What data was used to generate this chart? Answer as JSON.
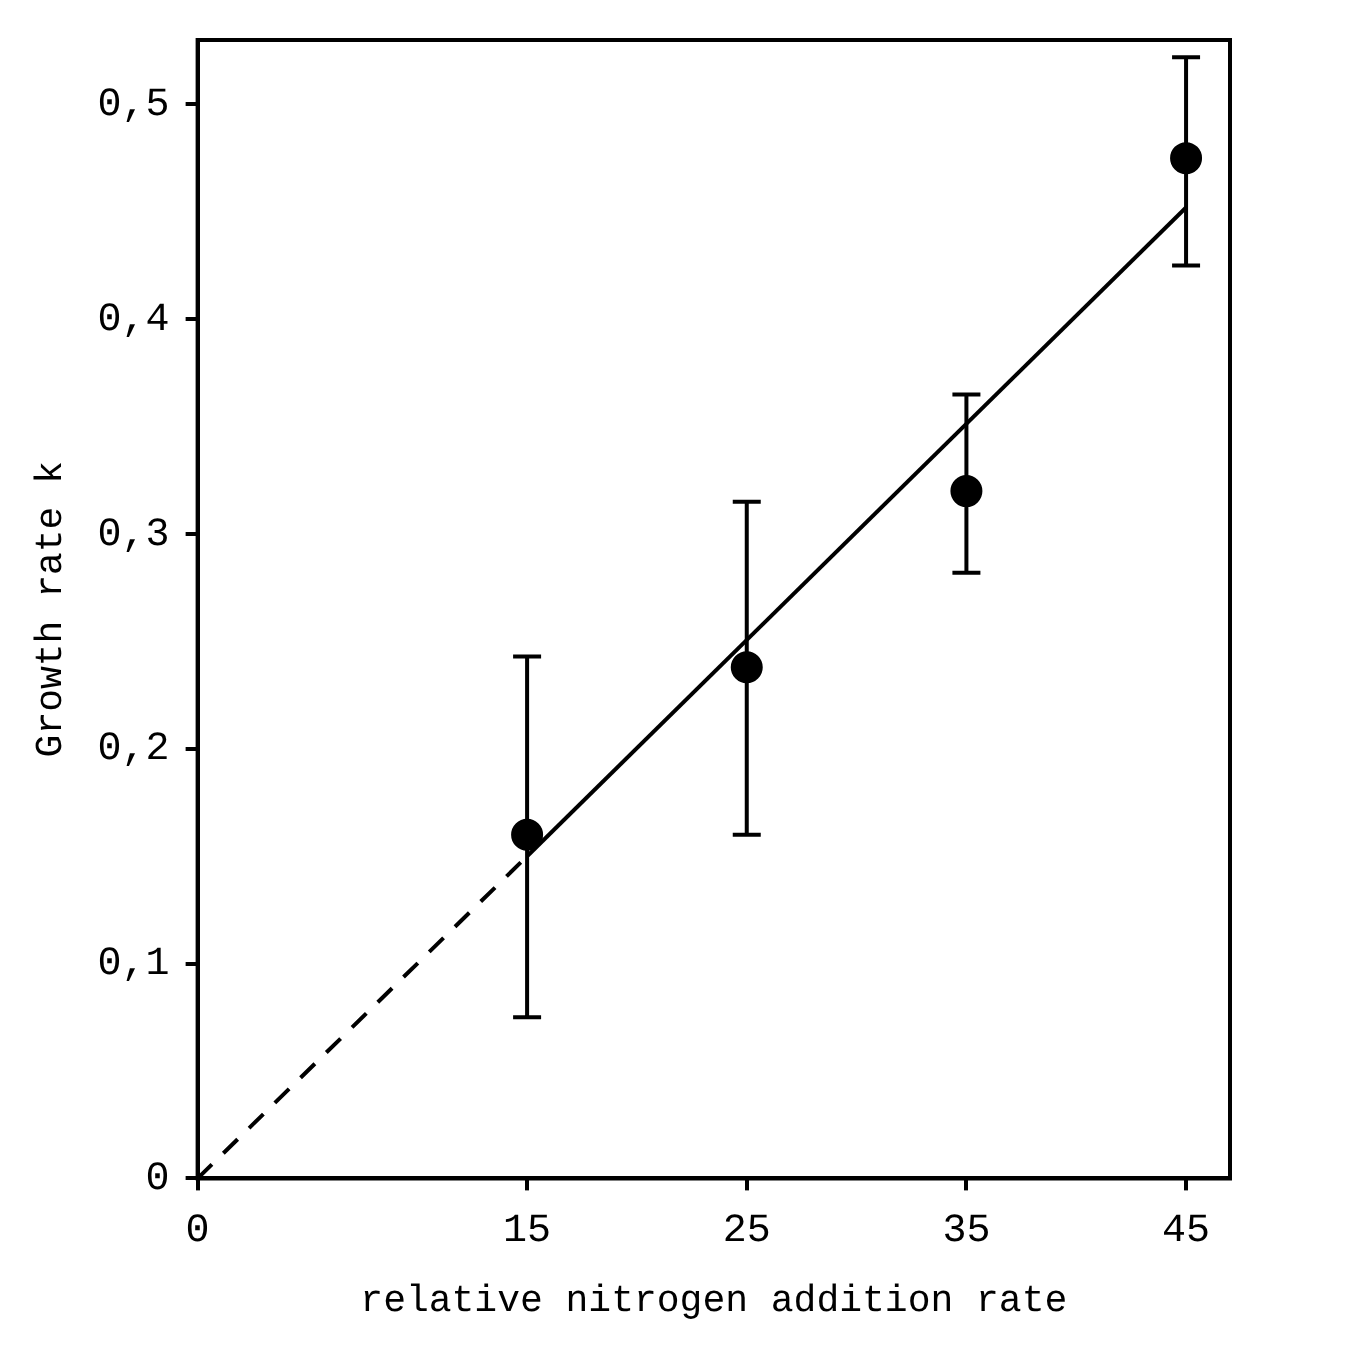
{
  "chart_data": {
    "type": "scatter",
    "xlabel": "relative nitrogen addition rate",
    "ylabel": "Growth rate k",
    "xlim": [
      0,
      47
    ],
    "ylim": [
      0,
      0.53
    ],
    "xticks": [
      0,
      15,
      25,
      35,
      45
    ],
    "yticks": [
      {
        "value": 0,
        "label": "0"
      },
      {
        "value": 0.1,
        "label": "0,1"
      },
      {
        "value": 0.2,
        "label": "0,2"
      },
      {
        "value": 0.3,
        "label": "0,3"
      },
      {
        "value": 0.4,
        "label": "0,4"
      },
      {
        "value": 0.5,
        "label": "0,5"
      }
    ],
    "grid": false,
    "legend": false,
    "series": [
      {
        "color": "#000000",
        "marker": "circle",
        "x": [
          15,
          25,
          35,
          45
        ],
        "values": [
          0.16,
          0.238,
          0.32,
          0.475
        ],
        "errors": [
          [
            0.075,
            0.243
          ],
          [
            0.16,
            0.315
          ],
          [
            0.282,
            0.365
          ],
          [
            0.425,
            0.522
          ]
        ]
      },
      {
        "type": "line",
        "color": "#000000",
        "marker": "none",
        "line_style": "solid",
        "x": [
          15,
          45
        ],
        "values": [
          0.15,
          0.452
        ]
      },
      {
        "type": "line",
        "color": "#000000",
        "marker": "none",
        "line_style": "dashed",
        "x": [
          0,
          15
        ],
        "values": [
          0,
          0.15
        ]
      }
    ]
  }
}
